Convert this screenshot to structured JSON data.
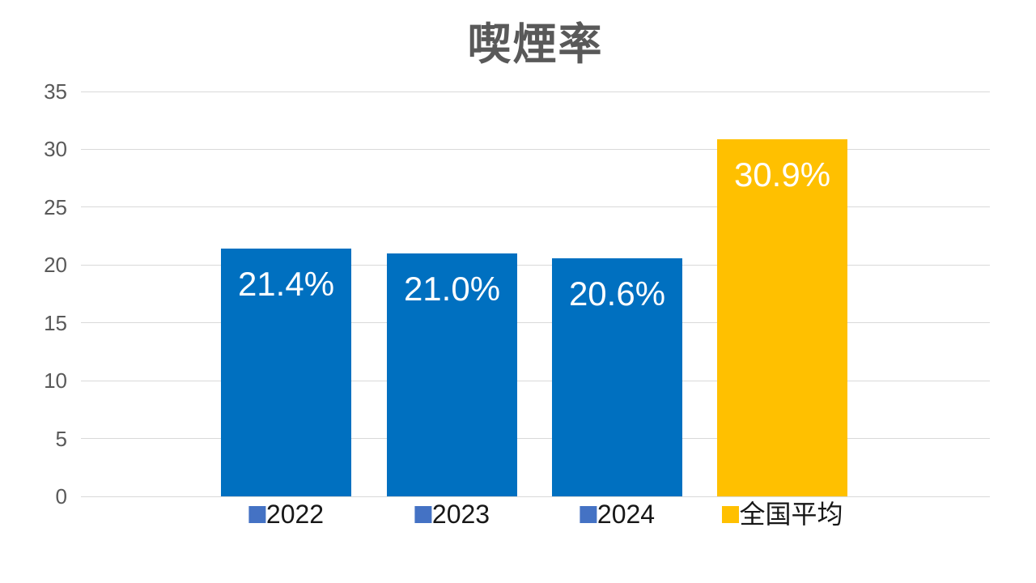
{
  "chart_data": {
    "type": "bar",
    "title": "喫煙率",
    "categories": [
      "2022",
      "2023",
      "2024",
      "全国平均"
    ],
    "values": [
      21.4,
      21.0,
      20.6,
      30.9
    ],
    "value_labels": [
      "21.4%",
      "21.0%",
      "20.6%",
      "30.9%"
    ],
    "bar_colors": [
      "#0070C0",
      "#0070C0",
      "#0070C0",
      "#FFC000"
    ],
    "legend_marker_colors": [
      "#4472C4",
      "#4472C4",
      "#4472C4",
      "#FFC000"
    ],
    "ylim": [
      0,
      35
    ],
    "yticks": [
      0,
      5,
      10,
      15,
      20,
      25,
      30,
      35
    ],
    "grid": true,
    "legend_position": "bottom-under-bars",
    "colors": {
      "title": "#595959",
      "axis_labels": "#595959",
      "gridline": "#D9D9D9",
      "value_label": "#FFFFFF",
      "legend_text": "#171717",
      "background": "#FFFFFF"
    }
  }
}
